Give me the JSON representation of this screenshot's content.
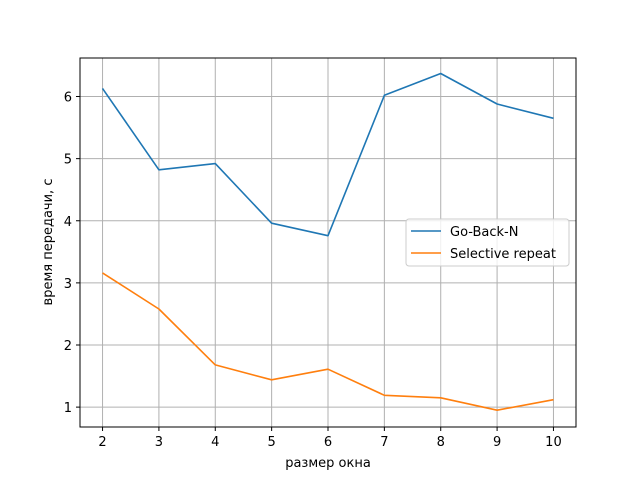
{
  "chart_data": {
    "type": "line",
    "title": "",
    "xlabel": "размер окна",
    "ylabel": "время передачи, с",
    "x": [
      2,
      3,
      4,
      5,
      6,
      7,
      8,
      9,
      10
    ],
    "xlim": [
      1.6,
      10.4
    ],
    "ylim": [
      0.68,
      6.62
    ],
    "xticks": [
      2,
      3,
      4,
      5,
      6,
      7,
      8,
      9,
      10
    ],
    "yticks": [
      1,
      2,
      3,
      4,
      5,
      6
    ],
    "grid": true,
    "legend_position": "center-right",
    "series": [
      {
        "name": "Go-Back-N",
        "color": "#1f77b4",
        "values": [
          6.13,
          4.82,
          4.92,
          3.96,
          3.76,
          6.02,
          6.37,
          5.88,
          5.65
        ]
      },
      {
        "name": "Selective repeat",
        "color": "#ff7f0e",
        "values": [
          3.16,
          2.58,
          1.68,
          1.44,
          1.61,
          1.19,
          1.15,
          0.95,
          1.12
        ]
      }
    ]
  }
}
